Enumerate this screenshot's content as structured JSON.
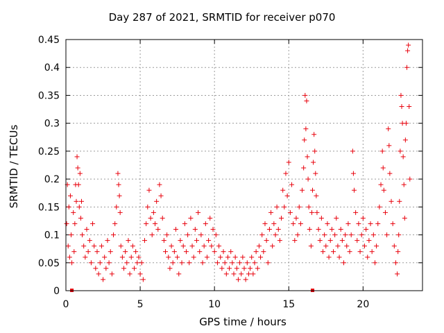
{
  "chart_data": {
    "type": "scatter",
    "title": "Day 287 of 2021, SRMTID for receiver p070",
    "xlabel": "GPS time / hours",
    "ylabel": "SRMTID / TECUs",
    "xlim": [
      0,
      24
    ],
    "ylim": [
      0,
      0.45
    ],
    "xticks": [
      "0",
      "5",
      "10",
      "15",
      "20"
    ],
    "yticks": [
      "0",
      "0.05",
      "0.1",
      "0.15",
      "0.2",
      "0.25",
      "0.3",
      "0.35",
      "0.4",
      "0.45"
    ],
    "grid": true,
    "marker": "plus",
    "color": "#e8000b",
    "series": [
      {
        "name": "SRMTID",
        "points": [
          [
            0.05,
            0.12
          ],
          [
            0.1,
            0.19
          ],
          [
            0.15,
            0.08
          ],
          [
            0.2,
            0.15
          ],
          [
            0.25,
            0.06
          ],
          [
            0.3,
            0.17
          ],
          [
            0.35,
            0.1
          ],
          [
            0.4,
            0.05
          ],
          [
            0.5,
            0.14
          ],
          [
            0.55,
            0.07
          ],
          [
            0.6,
            0.12
          ],
          [
            0.65,
            0.19
          ],
          [
            0.7,
            0.16
          ],
          [
            0.75,
            0.24
          ],
          [
            0.8,
            0.22
          ],
          [
            0.85,
            0.19
          ],
          [
            0.9,
            0.15
          ],
          [
            0.95,
            0.21
          ],
          [
            1.0,
            0.13
          ],
          [
            1.05,
            0.16
          ],
          [
            1.1,
            0.1
          ],
          [
            1.2,
            0.08
          ],
          [
            1.3,
            0.06
          ],
          [
            1.4,
            0.11
          ],
          [
            1.5,
            0.07
          ],
          [
            1.6,
            0.09
          ],
          [
            1.7,
            0.05
          ],
          [
            1.8,
            0.12
          ],
          [
            1.9,
            0.08
          ],
          [
            2.0,
            0.04
          ],
          [
            2.1,
            0.07
          ],
          [
            2.2,
            0.03
          ],
          [
            2.3,
            0.05
          ],
          [
            2.4,
            0.08
          ],
          [
            2.5,
            0.02
          ],
          [
            2.6,
            0.06
          ],
          [
            2.7,
            0.04
          ],
          [
            2.8,
            0.09
          ],
          [
            2.9,
            0.05
          ],
          [
            3.0,
            0.07
          ],
          [
            3.1,
            0.03
          ],
          [
            3.2,
            0.1
          ],
          [
            3.3,
            0.12
          ],
          [
            3.4,
            0.15
          ],
          [
            3.5,
            0.21
          ],
          [
            3.55,
            0.19
          ],
          [
            3.6,
            0.17
          ],
          [
            3.65,
            0.14
          ],
          [
            3.7,
            0.08
          ],
          [
            3.8,
            0.06
          ],
          [
            3.9,
            0.04
          ],
          [
            4.0,
            0.07
          ],
          [
            4.1,
            0.05
          ],
          [
            4.2,
            0.09
          ],
          [
            4.3,
            0.03
          ],
          [
            4.4,
            0.06
          ],
          [
            4.5,
            0.08
          ],
          [
            4.6,
            0.04
          ],
          [
            4.7,
            0.07
          ],
          [
            4.8,
            0.05
          ],
          [
            4.9,
            0.06
          ],
          [
            5.0,
            0.03
          ],
          [
            5.1,
            0.05
          ],
          [
            5.2,
            0.02
          ],
          [
            5.3,
            0.09
          ],
          [
            5.4,
            0.12
          ],
          [
            5.5,
            0.15
          ],
          [
            5.6,
            0.18
          ],
          [
            5.7,
            0.13
          ],
          [
            5.8,
            0.1
          ],
          [
            5.9,
            0.14
          ],
          [
            6.0,
            0.12
          ],
          [
            6.1,
            0.16
          ],
          [
            6.2,
            0.11
          ],
          [
            6.3,
            0.19
          ],
          [
            6.4,
            0.17
          ],
          [
            6.5,
            0.13
          ],
          [
            6.6,
            0.09
          ],
          [
            6.7,
            0.07
          ],
          [
            6.8,
            0.1
          ],
          [
            6.9,
            0.06
          ],
          [
            7.0,
            0.04
          ],
          [
            7.1,
            0.08
          ],
          [
            7.2,
            0.05
          ],
          [
            7.3,
            0.07
          ],
          [
            7.4,
            0.11
          ],
          [
            7.5,
            0.06
          ],
          [
            7.6,
            0.03
          ],
          [
            7.7,
            0.09
          ],
          [
            7.8,
            0.05
          ],
          [
            7.9,
            0.08
          ],
          [
            8.0,
            0.12
          ],
          [
            8.1,
            0.07
          ],
          [
            8.2,
            0.1
          ],
          [
            8.3,
            0.05
          ],
          [
            8.4,
            0.13
          ],
          [
            8.5,
            0.08
          ],
          [
            8.6,
            0.06
          ],
          [
            8.7,
            0.11
          ],
          [
            8.8,
            0.09
          ],
          [
            8.9,
            0.14
          ],
          [
            9.0,
            0.07
          ],
          [
            9.1,
            0.1
          ],
          [
            9.2,
            0.05
          ],
          [
            9.3,
            0.08
          ],
          [
            9.4,
            0.12
          ],
          [
            9.5,
            0.06
          ],
          [
            9.6,
            0.09
          ],
          [
            9.7,
            0.13
          ],
          [
            9.8,
            0.08
          ],
          [
            9.9,
            0.11
          ],
          [
            10.0,
            0.07
          ],
          [
            10.1,
            0.1
          ],
          [
            10.2,
            0.05
          ],
          [
            10.3,
            0.08
          ],
          [
            10.4,
            0.06
          ],
          [
            10.5,
            0.04
          ],
          [
            10.6,
            0.07
          ],
          [
            10.7,
            0.05
          ],
          [
            10.8,
            0.03
          ],
          [
            10.9,
            0.06
          ],
          [
            11.0,
            0.04
          ],
          [
            11.1,
            0.07
          ],
          [
            11.2,
            0.05
          ],
          [
            11.3,
            0.03
          ],
          [
            11.4,
            0.06
          ],
          [
            11.5,
            0.04
          ],
          [
            11.6,
            0.02
          ],
          [
            11.7,
            0.05
          ],
          [
            11.8,
            0.03
          ],
          [
            11.9,
            0.06
          ],
          [
            12.0,
            0.04
          ],
          [
            12.1,
            0.02
          ],
          [
            12.2,
            0.05
          ],
          [
            12.3,
            0.03
          ],
          [
            12.4,
            0.04
          ],
          [
            12.5,
            0.06
          ],
          [
            12.6,
            0.03
          ],
          [
            12.7,
            0.05
          ],
          [
            12.8,
            0.07
          ],
          [
            12.9,
            0.04
          ],
          [
            13.0,
            0.08
          ],
          [
            13.1,
            0.06
          ],
          [
            13.2,
            0.1
          ],
          [
            13.3,
            0.07
          ],
          [
            13.4,
            0.12
          ],
          [
            13.5,
            0.09
          ],
          [
            13.6,
            0.05
          ],
          [
            13.7,
            0.11
          ],
          [
            13.8,
            0.14
          ],
          [
            13.9,
            0.08
          ],
          [
            14.0,
            0.12
          ],
          [
            14.1,
            0.1
          ],
          [
            14.2,
            0.15
          ],
          [
            14.3,
            0.11
          ],
          [
            14.4,
            0.09
          ],
          [
            14.5,
            0.13
          ],
          [
            14.6,
            0.18
          ],
          [
            14.7,
            0.15
          ],
          [
            14.8,
            0.21
          ],
          [
            14.9,
            0.17
          ],
          [
            15.0,
            0.23
          ],
          [
            15.1,
            0.14
          ],
          [
            15.2,
            0.19
          ],
          [
            15.3,
            0.12
          ],
          [
            15.4,
            0.09
          ],
          [
            15.5,
            0.13
          ],
          [
            15.6,
            0.1
          ],
          [
            15.7,
            0.15
          ],
          [
            15.8,
            0.12
          ],
          [
            15.9,
            0.18
          ],
          [
            16.0,
            0.22
          ],
          [
            16.05,
            0.27
          ],
          [
            16.1,
            0.35
          ],
          [
            16.15,
            0.29
          ],
          [
            16.2,
            0.34
          ],
          [
            16.25,
            0.24
          ],
          [
            16.3,
            0.2
          ],
          [
            16.35,
            0.15
          ],
          [
            16.4,
            0.11
          ],
          [
            16.5,
            0.08
          ],
          [
            16.55,
            0.14
          ],
          [
            16.6,
            0.18
          ],
          [
            16.65,
            0.23
          ],
          [
            16.7,
            0.28
          ],
          [
            16.75,
            0.25
          ],
          [
            16.8,
            0.21
          ],
          [
            16.85,
            0.17
          ],
          [
            16.9,
            0.14
          ],
          [
            17.0,
            0.11
          ],
          [
            17.1,
            0.09
          ],
          [
            17.2,
            0.13
          ],
          [
            17.3,
            0.07
          ],
          [
            17.4,
            0.1
          ],
          [
            17.5,
            0.08
          ],
          [
            17.6,
            0.12
          ],
          [
            17.7,
            0.06
          ],
          [
            17.8,
            0.09
          ],
          [
            17.9,
            0.11
          ],
          [
            18.0,
            0.07
          ],
          [
            18.1,
            0.1
          ],
          [
            18.2,
            0.13
          ],
          [
            18.3,
            0.08
          ],
          [
            18.4,
            0.06
          ],
          [
            18.5,
            0.11
          ],
          [
            18.6,
            0.09
          ],
          [
            18.7,
            0.05
          ],
          [
            18.8,
            0.1
          ],
          [
            18.9,
            0.08
          ],
          [
            19.0,
            0.12
          ],
          [
            19.1,
            0.07
          ],
          [
            19.2,
            0.1
          ],
          [
            19.3,
            0.25
          ],
          [
            19.35,
            0.21
          ],
          [
            19.4,
            0.18
          ],
          [
            19.5,
            0.14
          ],
          [
            19.6,
            0.09
          ],
          [
            19.7,
            0.12
          ],
          [
            19.8,
            0.07
          ],
          [
            19.9,
            0.1
          ],
          [
            20.0,
            0.13
          ],
          [
            20.1,
            0.08
          ],
          [
            20.2,
            0.11
          ],
          [
            20.3,
            0.06
          ],
          [
            20.4,
            0.09
          ],
          [
            20.5,
            0.12
          ],
          [
            20.6,
            0.07
          ],
          [
            20.7,
            0.1
          ],
          [
            20.8,
            0.05
          ],
          [
            20.9,
            0.08
          ],
          [
            21.0,
            0.12
          ],
          [
            21.1,
            0.15
          ],
          [
            21.2,
            0.19
          ],
          [
            21.3,
            0.25
          ],
          [
            21.35,
            0.22
          ],
          [
            21.4,
            0.18
          ],
          [
            21.5,
            0.14
          ],
          [
            21.6,
            0.1
          ],
          [
            21.7,
            0.29
          ],
          [
            21.75,
            0.26
          ],
          [
            21.8,
            0.21
          ],
          [
            21.9,
            0.16
          ],
          [
            22.0,
            0.12
          ],
          [
            22.1,
            0.08
          ],
          [
            22.2,
            0.05
          ],
          [
            22.3,
            0.03
          ],
          [
            22.35,
            0.07
          ],
          [
            22.4,
            0.1
          ],
          [
            22.45,
            0.16
          ],
          [
            22.5,
            0.25
          ],
          [
            22.55,
            0.35
          ],
          [
            22.6,
            0.33
          ],
          [
            22.65,
            0.3
          ],
          [
            22.7,
            0.24
          ],
          [
            22.75,
            0.19
          ],
          [
            22.8,
            0.13
          ],
          [
            22.85,
            0.27
          ],
          [
            22.9,
            0.3
          ],
          [
            22.95,
            0.4
          ],
          [
            23.0,
            0.43
          ],
          [
            23.05,
            0.44
          ],
          [
            23.1,
            0.33
          ],
          [
            23.15,
            0.2
          ]
        ]
      }
    ],
    "baseline_markers": [
      0.4,
      16.6
    ]
  }
}
